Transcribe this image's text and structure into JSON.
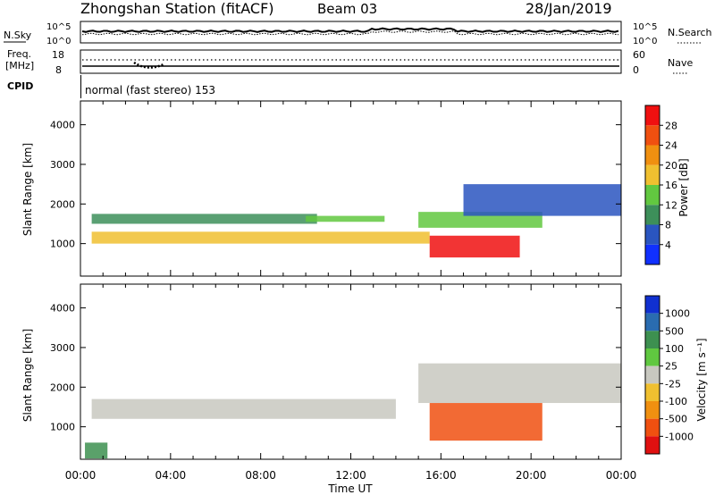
{
  "header": {
    "station": "Zhongshan Station (fitACF)",
    "beam": "Beam 03",
    "date": "28/Jan/2019"
  },
  "params": {
    "nsky_label": "N.Sky",
    "nsearch_label": "N.Search",
    "noise_ticks": [
      "10^5",
      "10^0"
    ],
    "freq_label_1": "Freq.",
    "freq_label_2": "[MHz]",
    "freq_ticks": [
      "18",
      "8"
    ],
    "nave_ticks": [
      "60",
      "0"
    ],
    "nave_label": "Nave",
    "cpid_label": "CPID",
    "cpid_text": "normal (fast stereo) 153"
  },
  "axes": {
    "ylabel": "Slant Range [km]",
    "xlabel": "Time UT",
    "yticks": [
      1000,
      2000,
      3000,
      4000
    ],
    "ylim": [
      180,
      4600
    ],
    "xticks": [
      "00:00",
      "04:00",
      "08:00",
      "12:00",
      "16:00",
      "20:00",
      "00:00"
    ],
    "xlim_hours": [
      0,
      24
    ]
  },
  "power_colorbar": {
    "label": "Power [dB]",
    "ticks": [
      "4",
      "8",
      "12",
      "16",
      "20",
      "24",
      "28"
    ],
    "colors": [
      "#1030ff",
      "#2a55c0",
      "#3d8f5a",
      "#62c840",
      "#f0c030",
      "#f09010",
      "#f05010",
      "#f01010"
    ]
  },
  "velocity_colorbar": {
    "label": "Velocity [m s⁻¹]",
    "ticks": [
      "1000",
      "500",
      "100",
      "25",
      "-25",
      "-100",
      "-500",
      "-1000"
    ],
    "colors": [
      "#1030d0",
      "#2a6cb0",
      "#3d9050",
      "#60c840",
      "#c8c8c0",
      "#f0c030",
      "#f09010",
      "#f05010",
      "#e01010"
    ]
  },
  "chart_data": [
    {
      "type": "heatmap",
      "panel": "power",
      "xlabel": "Time UT",
      "ylabel": "Slant Range [km]",
      "ylim": [
        180,
        4600
      ],
      "xlim": [
        0,
        24
      ],
      "value_label": "Power [dB]",
      "regions": [
        {
          "t0": 0.5,
          "t1": 15.5,
          "r0": 1000,
          "r1": 1300,
          "level": 4
        },
        {
          "t0": 0.5,
          "t1": 10.5,
          "r0": 1500,
          "r1": 1750,
          "level": 2
        },
        {
          "t0": 10.0,
          "t1": 13.5,
          "r0": 1550,
          "r1": 1700,
          "level": 3
        },
        {
          "t0": 15.5,
          "t1": 19.5,
          "r0": 650,
          "r1": 1200,
          "level": 7
        },
        {
          "t0": 15.0,
          "t1": 20.5,
          "r0": 1400,
          "r1": 1800,
          "level": 3
        },
        {
          "t0": 17.0,
          "t1": 24.0,
          "r0": 1700,
          "r1": 2500,
          "level": 1
        }
      ]
    },
    {
      "type": "heatmap",
      "panel": "velocity",
      "xlabel": "Time UT",
      "ylabel": "Slant Range [km]",
      "ylim": [
        180,
        4600
      ],
      "xlim": [
        0,
        24
      ],
      "value_label": "Velocity [m s⁻¹]",
      "regions": [
        {
          "t0": 0.5,
          "t1": 14.0,
          "r0": 1200,
          "r1": 1700,
          "level": 4
        },
        {
          "t0": 15.5,
          "t1": 20.5,
          "r0": 650,
          "r1": 1600,
          "level": 7
        },
        {
          "t0": 0.2,
          "t1": 1.2,
          "r0": 200,
          "r1": 600,
          "level": 2
        },
        {
          "t0": 15.0,
          "t1": 24.0,
          "r0": 1600,
          "r1": 2600,
          "level": 4
        }
      ]
    }
  ]
}
